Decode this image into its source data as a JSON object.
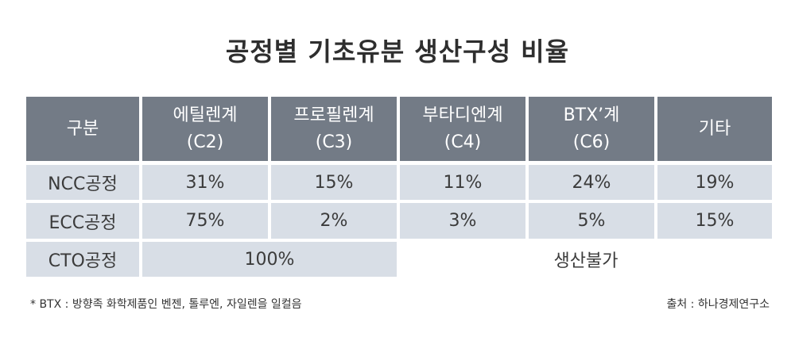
{
  "title": "공정별 기초유분 생산구성 비율",
  "header": {
    "col0": "구분",
    "cols": [
      {
        "line1": "에틸렌계",
        "line2": "(C2)"
      },
      {
        "line1": "프로필렌계",
        "line2": "(C3)"
      },
      {
        "line1": "부타디엔계",
        "line2": "(C4)"
      },
      {
        "line1": "BTX’계",
        "line2": "(C6)"
      },
      {
        "line1": "기타",
        "line2": ""
      }
    ]
  },
  "rows": [
    {
      "label": "NCC공정",
      "values": [
        "31%",
        "15%",
        "11%",
        "24%",
        "19%"
      ]
    },
    {
      "label": "ECC공정",
      "values": [
        "75%",
        "2%",
        "3%",
        "5%",
        "15%"
      ]
    },
    {
      "label": "CTO공정",
      "merged_value": "100%",
      "note": "생산불가"
    }
  ],
  "footnote_left": "* BTX : 방향족 화학제품인 벤젠, 톨루엔, 자일렌을 일컬음",
  "footnote_right": "출처 : 하나경제연구소"
}
